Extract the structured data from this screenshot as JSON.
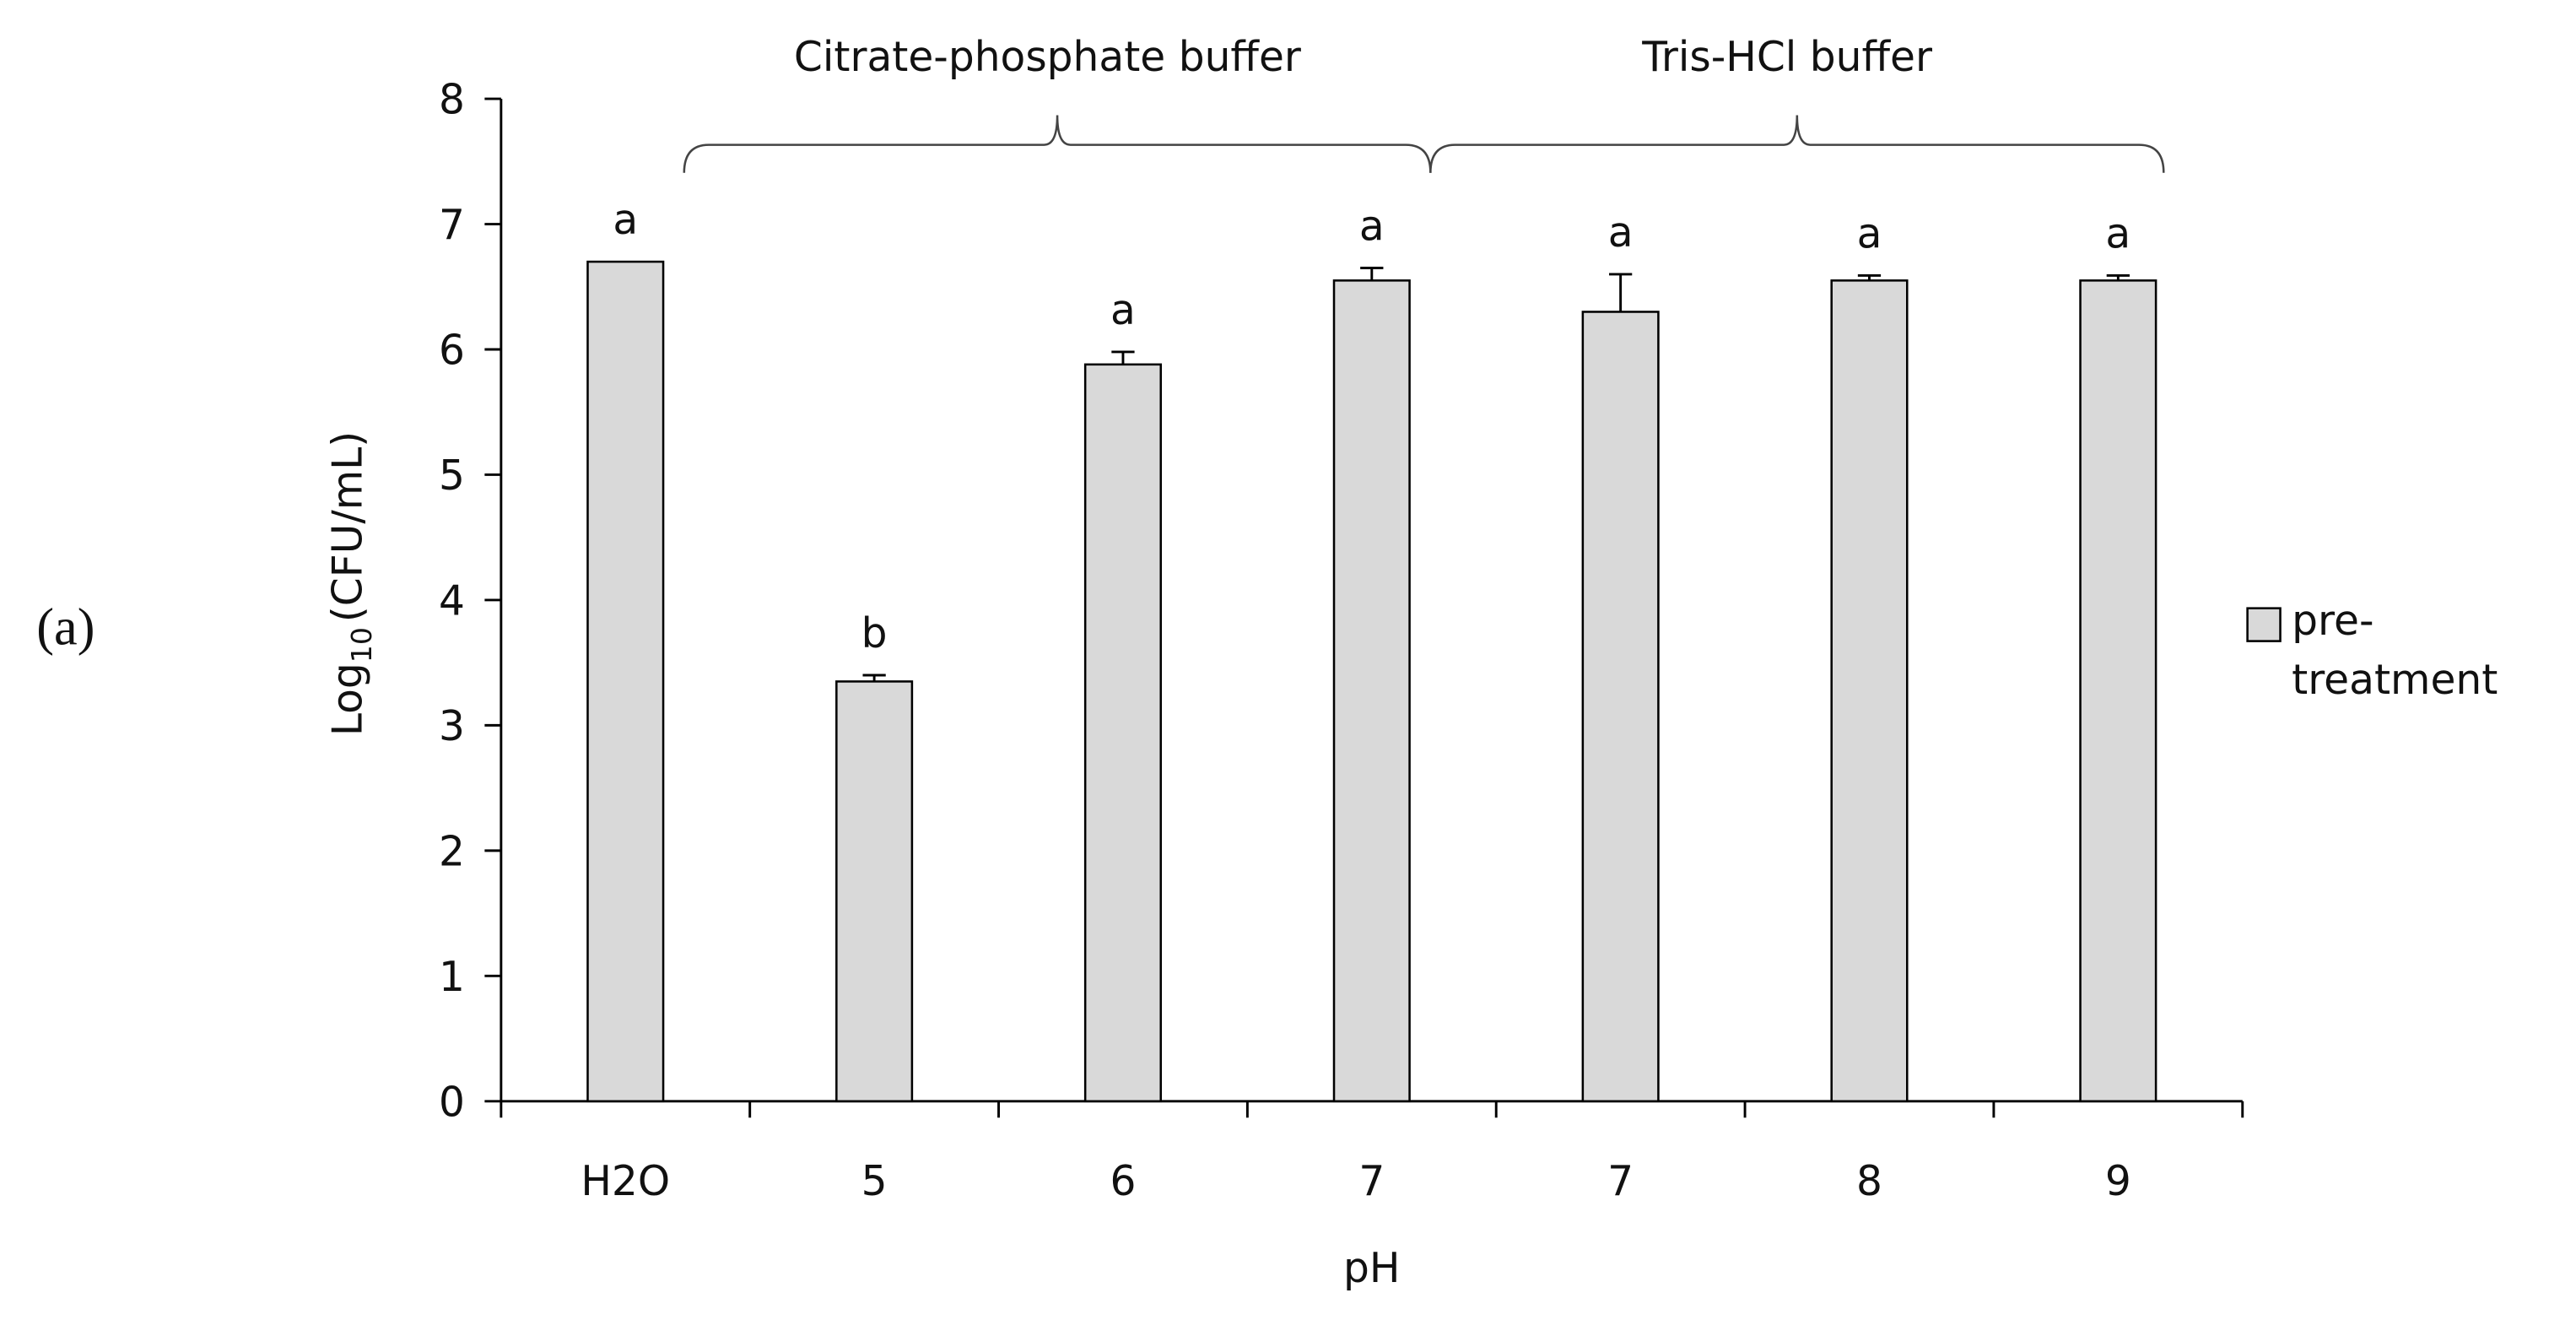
{
  "panel_label": "(a)",
  "chart_data": {
    "type": "bar",
    "x_label": "pH",
    "y_label": {
      "base": "Log",
      "subscript": "10",
      "rest": "(CFU/mL)"
    },
    "categories": [
      "H2O",
      "5",
      "6",
      "7",
      "7",
      "8",
      "9"
    ],
    "series": [
      {
        "name": "pre-treatment",
        "color": "#d9d9d9",
        "values": [
          6.7,
          3.35,
          5.88,
          6.55,
          6.3,
          6.55,
          6.55
        ],
        "errors": [
          0,
          0.05,
          0.1,
          0.1,
          0.3,
          0.04,
          0.04
        ]
      }
    ],
    "annotations": [
      "a",
      "b",
      "a",
      "a",
      "a",
      "a",
      "a"
    ],
    "groups": [
      "Citrate-phosphate buffer",
      "Tris-HCl buffer"
    ],
    "ylim": [
      0,
      8
    ],
    "yticks": [
      0,
      1,
      2,
      3,
      4,
      5,
      6,
      7,
      8
    ],
    "grid": false,
    "legend": "right"
  }
}
